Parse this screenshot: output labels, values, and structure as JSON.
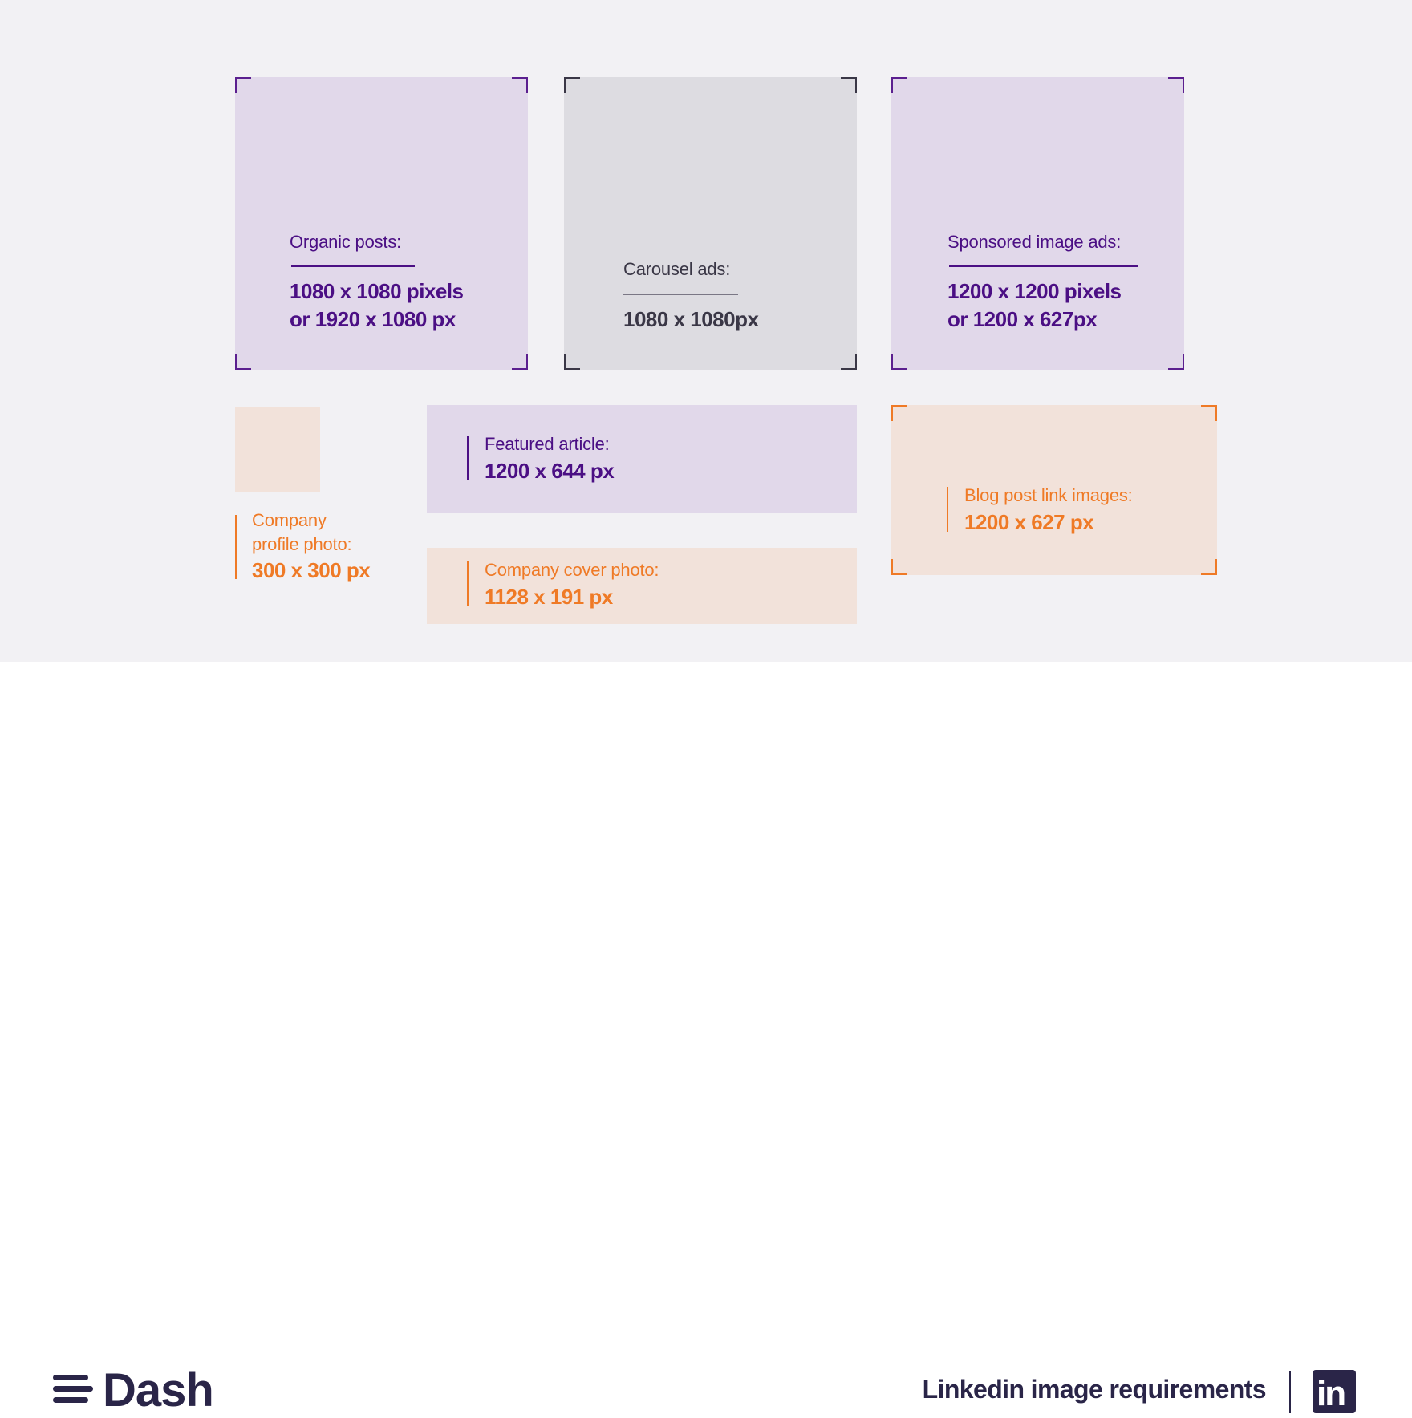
{
  "cards": {
    "organic": {
      "title": "Organic posts:",
      "line1": "1080 x 1080 pixels",
      "line2": "or 1920 x 1080 px"
    },
    "carousel": {
      "title": "Carousel ads:",
      "value": "1080 x 1080px"
    },
    "sponsored": {
      "title": "Sponsored image ads:",
      "line1": "1200 x 1200 pixels",
      "line2": "or 1200 x 627px"
    },
    "featured": {
      "title": "Featured article:",
      "value": "1200 x 644 px"
    },
    "profile": {
      "line1": "Company",
      "line2": "profile photo:",
      "value": "300 x 300 px"
    },
    "cover": {
      "title": "Company cover photo:",
      "value": "1128 x 191 px"
    },
    "blog": {
      "title": "Blog post link images:",
      "value": "1200 x 627 px"
    }
  },
  "footer": {
    "brand": "Dash",
    "title": "Linkedin image requirements",
    "linkedin_logo": "in"
  },
  "colors": {
    "purple_fill": "#e1d8ea",
    "gray_fill": "#dddce1",
    "peach_fill": "#f2e2da",
    "purple_text": "#4b0f84",
    "orange_text": "#ef7a26",
    "dark_navy": "#2a2548"
  }
}
